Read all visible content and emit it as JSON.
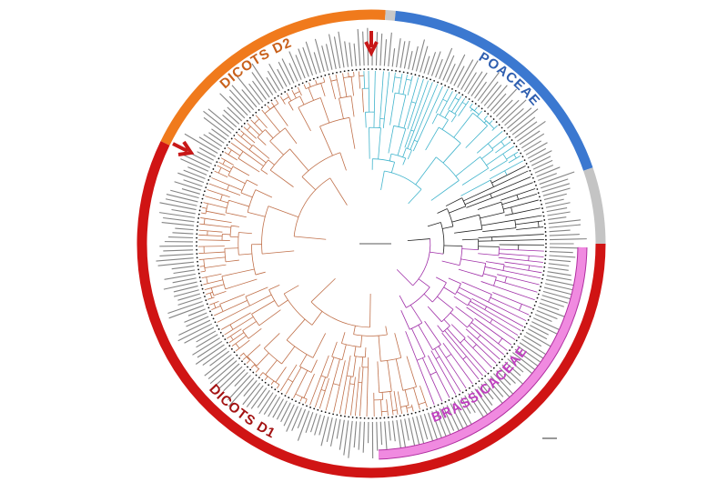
{
  "clades": [
    {
      "label": "DICOTS D2"
    },
    {
      "label": "POACEAE"
    },
    {
      "label": "DICOTS D1"
    },
    {
      "label": "BRASSICACEAE"
    }
  ]
}
